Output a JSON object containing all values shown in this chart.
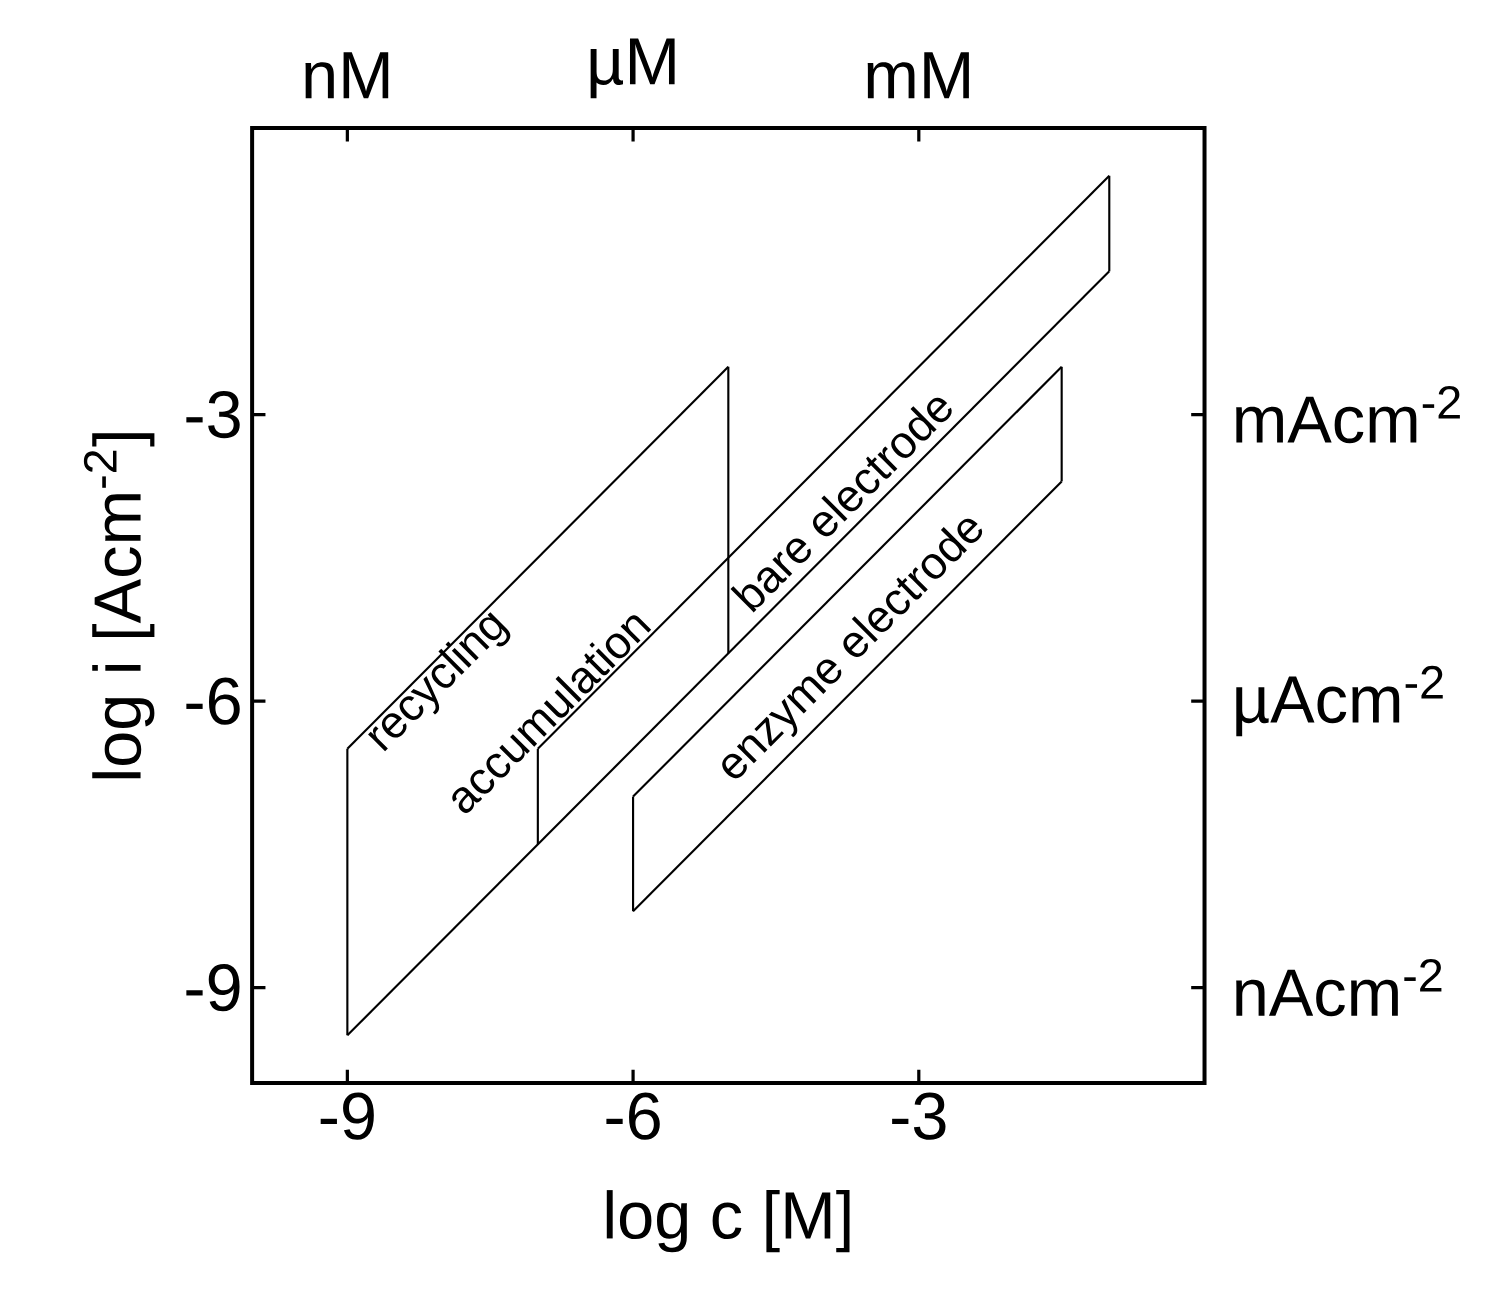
{
  "chart_data": {
    "type": "line",
    "xlabel": "log c [M]",
    "ylabel": "log i [Acm$^{-2}$]",
    "xlim": [
      -10,
      0
    ],
    "ylim": [
      -10,
      0
    ],
    "xticks": [
      -9,
      -6,
      -3
    ],
    "yticks": [
      -9,
      -6,
      -3
    ],
    "series": [
      {
        "color": "#000000",
        "x": [
          -9,
          -1
        ],
        "values": [
          -9.5,
          -1.5
        ]
      },
      {
        "color": "#000000",
        "x": [
          -9,
          -5
        ],
        "values": [
          -6.5,
          -2.5
        ]
      },
      {
        "color": "#000000",
        "x": [
          -7,
          -1
        ],
        "values": [
          -6.5,
          -0.5
        ]
      },
      {
        "color": "#000000",
        "x": [
          -6,
          -1.5
        ],
        "values": [
          -7,
          -2.5
        ]
      },
      {
        "color": "#000000",
        "x": [
          -6,
          -1.5
        ],
        "values": [
          -8.2,
          -3.7
        ]
      },
      {
        "color": "#000000",
        "x": [
          -9,
          -9
        ],
        "values": [
          -9.5,
          -6.5
        ]
      },
      {
        "color": "#000000",
        "x": [
          -5,
          -5
        ],
        "values": [
          -5.5,
          -2.5
        ]
      },
      {
        "color": "#000000",
        "x": [
          -7,
          -7
        ],
        "values": [
          -7.5,
          -6.5
        ]
      },
      {
        "color": "#000000",
        "x": [
          -1,
          -1
        ],
        "values": [
          -1.5,
          -0.5
        ]
      },
      {
        "color": "#000000",
        "x": [
          -6,
          -6
        ],
        "values": [
          -8.2,
          -7
        ]
      },
      {
        "color": "#000000",
        "x": [
          -1.5,
          -1.5
        ],
        "values": [
          -3.7,
          -2.5
        ]
      }
    ],
    "annotations": [
      "recycling",
      "accumulation",
      "bare electrode",
      "enzyme electrode",
      "nM",
      "µM",
      "mM",
      "mAcm$^{-2}$",
      "µAcm$^{-2}$",
      "nAcm$^{-2}$"
    ]
  }
}
